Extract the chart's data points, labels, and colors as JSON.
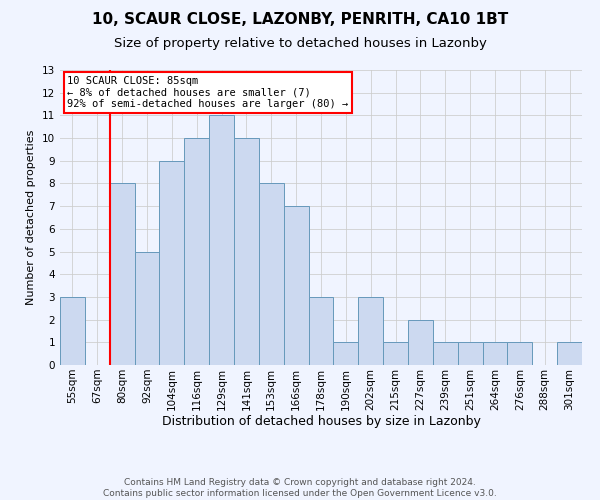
{
  "title": "10, SCAUR CLOSE, LAZONBY, PENRITH, CA10 1BT",
  "subtitle": "Size of property relative to detached houses in Lazonby",
  "xlabel": "Distribution of detached houses by size in Lazonby",
  "ylabel": "Number of detached properties",
  "bin_labels": [
    "55sqm",
    "67sqm",
    "80sqm",
    "92sqm",
    "104sqm",
    "116sqm",
    "129sqm",
    "141sqm",
    "153sqm",
    "166sqm",
    "178sqm",
    "190sqm",
    "202sqm",
    "215sqm",
    "227sqm",
    "239sqm",
    "251sqm",
    "264sqm",
    "276sqm",
    "288sqm",
    "301sqm"
  ],
  "bar_heights": [
    3,
    0,
    8,
    5,
    9,
    10,
    11,
    10,
    8,
    7,
    3,
    1,
    3,
    1,
    2,
    1,
    1,
    1,
    1,
    0,
    1
  ],
  "bar_color": "#ccd9f0",
  "bar_edge_color": "#6699bb",
  "bar_edge_width": 0.7,
  "red_line_x": 2.0,
  "annotation_text": "10 SCAUR CLOSE: 85sqm\n← 8% of detached houses are smaller (7)\n92% of semi-detached houses are larger (80) →",
  "annotation_box_color": "white",
  "annotation_box_edge_color": "red",
  "ylim": [
    0,
    13
  ],
  "yticks": [
    0,
    1,
    2,
    3,
    4,
    5,
    6,
    7,
    8,
    9,
    10,
    11,
    12,
    13
  ],
  "grid_color": "#cccccc",
  "grid_alpha": 0.8,
  "footer_text": "Contains HM Land Registry data © Crown copyright and database right 2024.\nContains public sector information licensed under the Open Government Licence v3.0.",
  "bg_color": "#f0f4ff",
  "title_fontsize": 11,
  "subtitle_fontsize": 9.5,
  "xlabel_fontsize": 9,
  "ylabel_fontsize": 8,
  "tick_fontsize": 7.5,
  "footer_fontsize": 6.5
}
